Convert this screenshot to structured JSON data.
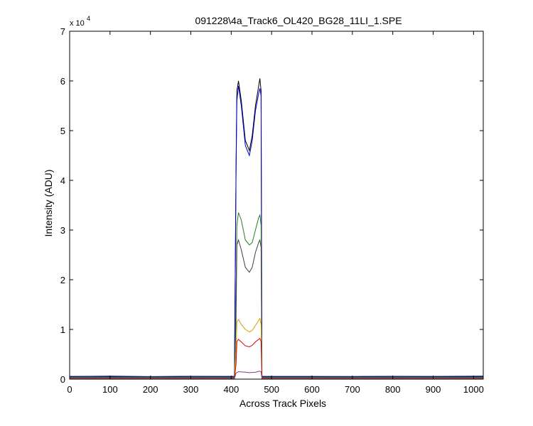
{
  "chart_data": {
    "type": "line",
    "title": "091228\\4a_Track6_OL420_BG28_11LI_1.SPE",
    "xlabel": "Across Track Pixels",
    "ylabel": "Intensity (ADU)",
    "y_exponent_label": "x 10",
    "y_exponent_power": "4",
    "xlim": [
      0,
      1024
    ],
    "ylim": [
      0,
      70000
    ],
    "xticks": [
      0,
      100,
      200,
      300,
      400,
      500,
      600,
      700,
      800,
      900,
      1000
    ],
    "yticks": [
      0,
      10000,
      20000,
      30000,
      40000,
      50000,
      60000,
      70000
    ],
    "ytick_labels": [
      "0",
      "1",
      "2",
      "3",
      "4",
      "5",
      "6",
      "7"
    ],
    "grid": false,
    "baseline": 500,
    "series": [
      {
        "color": "#000000",
        "x": [
          0,
          100,
          200,
          300,
          408,
          412,
          414,
          418,
          425,
          435,
          445,
          452,
          460,
          468,
          471,
          474,
          476,
          600,
          700,
          800,
          900,
          1024
        ],
        "y": [
          500,
          520,
          480,
          510,
          500,
          43000,
          58000,
          60000,
          56000,
          48000,
          46000,
          49000,
          55000,
          59000,
          60500,
          58000,
          500,
          500,
          480,
          510,
          500,
          520
        ]
      },
      {
        "color": "#0000cc",
        "x": [
          0,
          100,
          200,
          300,
          408,
          412,
          414,
          418,
          425,
          435,
          445,
          452,
          460,
          468,
          471,
          474,
          476,
          600,
          700,
          800,
          900,
          1024
        ],
        "y": [
          550,
          600,
          520,
          580,
          550,
          42000,
          56000,
          59000,
          55000,
          47000,
          45000,
          48000,
          54000,
          57500,
          58500,
          57000,
          550,
          560,
          540,
          580,
          560,
          600
        ]
      },
      {
        "color": "#1f7f1f",
        "x": [
          0,
          408,
          412,
          414,
          418,
          425,
          435,
          445,
          452,
          460,
          468,
          471,
          474,
          476,
          1024
        ],
        "y": [
          400,
          400,
          16500,
          31000,
          33500,
          32000,
          28000,
          27000,
          27500,
          30000,
          32500,
          33000,
          31000,
          400,
          400
        ]
      },
      {
        "color": "#404040",
        "x": [
          0,
          408,
          412,
          414,
          418,
          425,
          435,
          445,
          452,
          460,
          468,
          471,
          474,
          476,
          1024
        ],
        "y": [
          300,
          300,
          12000,
          27000,
          28000,
          26000,
          22500,
          21500,
          22500,
          25500,
          27500,
          28000,
          26500,
          300,
          300
        ]
      },
      {
        "color": "#d4a000",
        "x": [
          0,
          408,
          412,
          414,
          418,
          425,
          435,
          445,
          452,
          460,
          468,
          471,
          474,
          476,
          1024
        ],
        "y": [
          200,
          200,
          6000,
          11500,
          12000,
          11000,
          10000,
          9500,
          9800,
          10800,
          11800,
          12200,
          11000,
          200,
          200
        ]
      },
      {
        "color": "#dd0000",
        "x": [
          0,
          408,
          412,
          414,
          418,
          425,
          435,
          445,
          452,
          460,
          468,
          471,
          474,
          476,
          1024
        ],
        "y": [
          150,
          150,
          3000,
          7500,
          8000,
          7500,
          6700,
          6500,
          6800,
          7500,
          8000,
          8200,
          7500,
          150,
          150
        ]
      },
      {
        "color": "#7f3f7f",
        "x": [
          0,
          408,
          412,
          418,
          435,
          445,
          460,
          470,
          474,
          476,
          1024
        ],
        "y": [
          100,
          100,
          1200,
          1500,
          1400,
          1300,
          1400,
          1600,
          1500,
          100,
          100
        ]
      }
    ]
  }
}
